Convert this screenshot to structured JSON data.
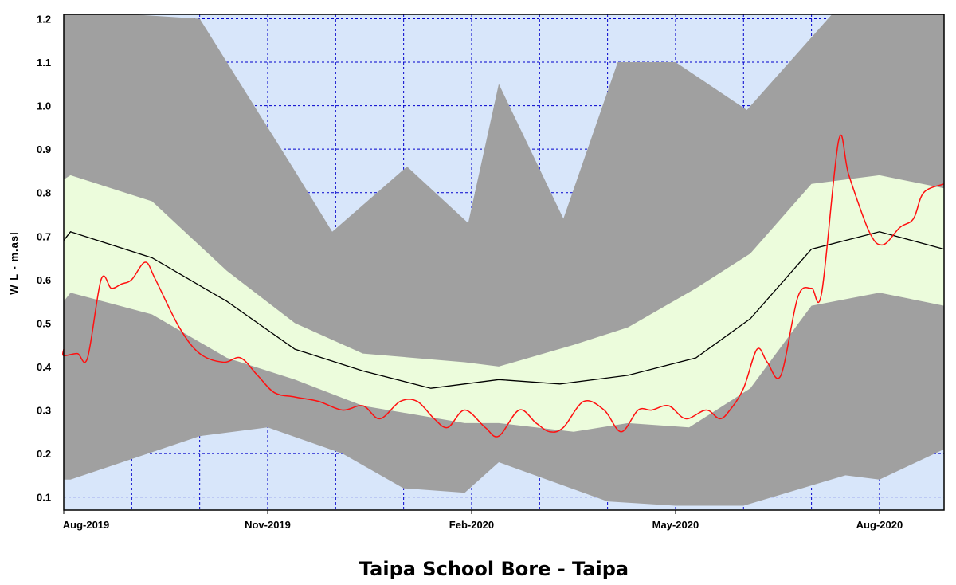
{
  "chart_data": {
    "type": "area",
    "title": "Taipa School Bore - Taipa",
    "xlabel": "",
    "ylabel": "W L - m.asl",
    "x_ticks": [
      "Aug-2019",
      "Nov-2019",
      "Feb-2020",
      "May-2020",
      "Aug-2020"
    ],
    "x_tick_positions": [
      0,
      3,
      6,
      9,
      12
    ],
    "xlim": [
      0,
      12.95
    ],
    "y_ticks": [
      "0.1",
      "0.2",
      "0.3",
      "0.4",
      "0.5",
      "0.6",
      "0.7",
      "0.8",
      "0.9",
      "1.0",
      "1.1",
      "1.2"
    ],
    "y_tick_values": [
      0.1,
      0.2,
      0.3,
      0.4,
      0.5,
      0.6,
      0.7,
      0.8,
      0.9,
      1.0,
      1.1,
      1.2
    ],
    "ylim": [
      0.07,
      1.21
    ],
    "grid": true,
    "colors": {
      "plot_background": "#d8e6fa",
      "outer_band": "#a0a0a0",
      "inner_band": "#ecfcdc",
      "median_line": "#000000",
      "observed_line": "#ff1010",
      "grid": "#0000cc"
    },
    "outer_band": {
      "upper": [
        [
          -0.3,
          1.21
        ],
        [
          1.0,
          1.21
        ],
        [
          2.0,
          1.2
        ],
        [
          3.0,
          0.95
        ],
        [
          3.4,
          0.85
        ],
        [
          3.95,
          0.71
        ],
        [
          5.05,
          0.86
        ],
        [
          5.95,
          0.73
        ],
        [
          6.4,
          1.05
        ],
        [
          7.35,
          0.74
        ],
        [
          8.15,
          1.1
        ],
        [
          9.0,
          1.1
        ],
        [
          10.05,
          0.99
        ],
        [
          11.3,
          1.21
        ],
        [
          12.95,
          1.21
        ]
      ],
      "lower": [
        [
          -0.3,
          0.14
        ],
        [
          0.1,
          0.14
        ],
        [
          2.0,
          0.24
        ],
        [
          3.0,
          0.26
        ],
        [
          4.1,
          0.2
        ],
        [
          5.0,
          0.12
        ],
        [
          5.9,
          0.11
        ],
        [
          6.4,
          0.18
        ],
        [
          8.0,
          0.09
        ],
        [
          9.0,
          0.08
        ],
        [
          10.0,
          0.08
        ],
        [
          11.5,
          0.15
        ],
        [
          12.0,
          0.14
        ],
        [
          12.95,
          0.21
        ]
      ]
    },
    "inner_band": {
      "upper": [
        [
          -0.3,
          0.83
        ],
        [
          0.1,
          0.84
        ],
        [
          1.3,
          0.78
        ],
        [
          2.4,
          0.62
        ],
        [
          3.4,
          0.5
        ],
        [
          4.4,
          0.43
        ],
        [
          5.9,
          0.41
        ],
        [
          6.4,
          0.4
        ],
        [
          7.5,
          0.45
        ],
        [
          8.3,
          0.49
        ],
        [
          9.3,
          0.58
        ],
        [
          10.1,
          0.66
        ],
        [
          11.0,
          0.82
        ],
        [
          12.0,
          0.84
        ],
        [
          12.95,
          0.81
        ]
      ],
      "lower": [
        [
          -0.3,
          0.55
        ],
        [
          0.1,
          0.57
        ],
        [
          1.3,
          0.52
        ],
        [
          2.4,
          0.42
        ],
        [
          3.4,
          0.37
        ],
        [
          4.4,
          0.31
        ],
        [
          5.9,
          0.27
        ],
        [
          6.4,
          0.27
        ],
        [
          7.5,
          0.25
        ],
        [
          8.3,
          0.27
        ],
        [
          9.2,
          0.26
        ],
        [
          10.1,
          0.35
        ],
        [
          11.0,
          0.54
        ],
        [
          12.0,
          0.57
        ],
        [
          12.95,
          0.54
        ]
      ]
    },
    "median_line": [
      [
        -0.3,
        0.69
      ],
      [
        0.1,
        0.71
      ],
      [
        1.3,
        0.65
      ],
      [
        2.4,
        0.55
      ],
      [
        3.4,
        0.44
      ],
      [
        4.4,
        0.39
      ],
      [
        5.4,
        0.35
      ],
      [
        6.4,
        0.37
      ],
      [
        7.3,
        0.36
      ],
      [
        8.3,
        0.38
      ],
      [
        9.3,
        0.42
      ],
      [
        10.1,
        0.51
      ],
      [
        11.0,
        0.67
      ],
      [
        12.0,
        0.71
      ],
      [
        12.95,
        0.67
      ]
    ],
    "observed": [
      [
        -0.3,
        0.44
      ],
      [
        -0.05,
        0.425
      ],
      [
        0.2,
        0.43
      ],
      [
        0.35,
        0.42
      ],
      [
        0.55,
        0.6
      ],
      [
        0.7,
        0.58
      ],
      [
        0.85,
        0.59
      ],
      [
        1.0,
        0.6
      ],
      [
        1.2,
        0.64
      ],
      [
        1.35,
        0.6
      ],
      [
        1.7,
        0.49
      ],
      [
        2.0,
        0.43
      ],
      [
        2.35,
        0.41
      ],
      [
        2.6,
        0.42
      ],
      [
        2.85,
        0.38
      ],
      [
        3.1,
        0.34
      ],
      [
        3.4,
        0.33
      ],
      [
        3.75,
        0.32
      ],
      [
        4.1,
        0.3
      ],
      [
        4.4,
        0.31
      ],
      [
        4.65,
        0.28
      ],
      [
        4.95,
        0.32
      ],
      [
        5.2,
        0.32
      ],
      [
        5.45,
        0.28
      ],
      [
        5.65,
        0.26
      ],
      [
        5.9,
        0.3
      ],
      [
        6.2,
        0.26
      ],
      [
        6.4,
        0.24
      ],
      [
        6.7,
        0.3
      ],
      [
        6.95,
        0.27
      ],
      [
        7.15,
        0.25
      ],
      [
        7.35,
        0.26
      ],
      [
        7.65,
        0.32
      ],
      [
        7.95,
        0.3
      ],
      [
        8.2,
        0.25
      ],
      [
        8.45,
        0.3
      ],
      [
        8.65,
        0.3
      ],
      [
        8.9,
        0.31
      ],
      [
        9.15,
        0.28
      ],
      [
        9.45,
        0.3
      ],
      [
        9.65,
        0.28
      ],
      [
        9.8,
        0.3
      ],
      [
        10.0,
        0.35
      ],
      [
        10.2,
        0.44
      ],
      [
        10.35,
        0.41
      ],
      [
        10.55,
        0.38
      ],
      [
        10.8,
        0.56
      ],
      [
        11.0,
        0.58
      ],
      [
        11.15,
        0.57
      ],
      [
        11.4,
        0.92
      ],
      [
        11.55,
        0.84
      ],
      [
        11.85,
        0.71
      ],
      [
        12.05,
        0.68
      ],
      [
        12.3,
        0.72
      ],
      [
        12.5,
        0.74
      ],
      [
        12.65,
        0.8
      ],
      [
        12.95,
        0.82
      ]
    ]
  }
}
